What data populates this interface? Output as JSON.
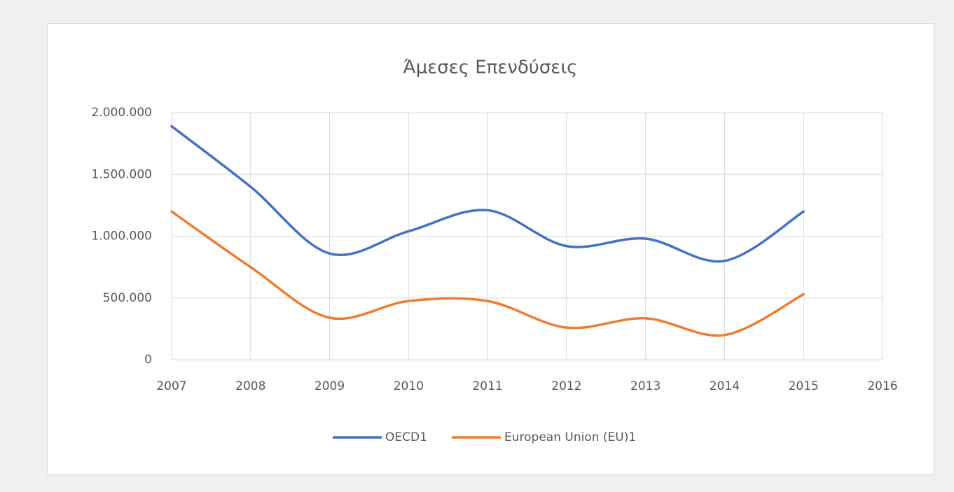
{
  "chart_data": {
    "type": "line",
    "title": "Άμεσες Επενδύσεις",
    "x": [
      2007,
      2008,
      2009,
      2010,
      2011,
      2012,
      2013,
      2014,
      2015
    ],
    "series": [
      {
        "name": "OECD1",
        "color": "#4472c4",
        "values": [
          1890000,
          1400000,
          860000,
          1040000,
          1210000,
          920000,
          980000,
          800000,
          1200000
        ]
      },
      {
        "name": "European Union (EU)1",
        "color": "#ed7d31",
        "values": [
          1200000,
          750000,
          340000,
          475000,
          475000,
          260000,
          335000,
          200000,
          530000
        ]
      }
    ],
    "xlim": [
      2007,
      2016
    ],
    "xticks": [
      2007,
      2008,
      2009,
      2010,
      2011,
      2012,
      2013,
      2014,
      2015,
      2016
    ],
    "ylim": [
      0,
      2000000
    ],
    "yticks": [
      0,
      {
        "value": 500000,
        "label": "500.000"
      },
      {
        "value": 1000000,
        "label": "1.000.000"
      },
      {
        "value": 1500000,
        "label": "1.500.000"
      },
      {
        "value": 2000000,
        "label": "2.000.000"
      }
    ],
    "grid": true,
    "smooth": true,
    "legend": "bottom"
  }
}
